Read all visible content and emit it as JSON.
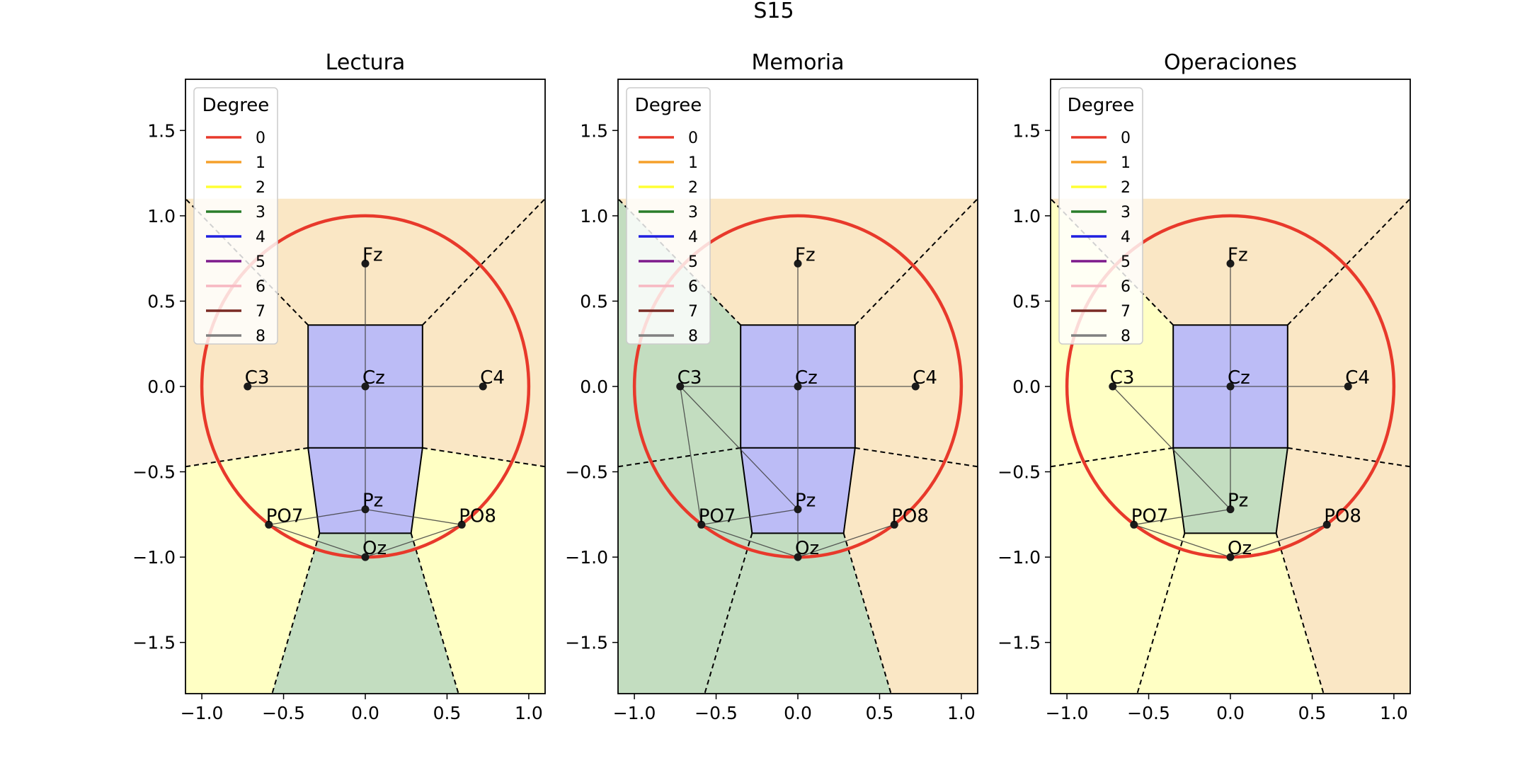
{
  "figure": {
    "title": "S15"
  },
  "chart_data": [
    {
      "type": "network",
      "title": "Lectura",
      "xlim": [
        -1.1,
        1.1
      ],
      "ylim": [
        -1.8,
        1.8
      ],
      "xticks": [
        -1.0,
        -0.5,
        0.0,
        0.5,
        1.0
      ],
      "xtick_labels": [
        "−1.0",
        "−0.5",
        "0.0",
        "0.5",
        "1.0"
      ],
      "yticks": [
        1.5,
        1.0,
        0.5,
        0.0,
        -0.5,
        -1.0,
        -1.5
      ],
      "ytick_labels": [
        "1.5",
        "1.0",
        "0.5",
        "0.0",
        "−0.5",
        "−1.0",
        "−1.5"
      ],
      "grid": false,
      "legend": {
        "title": "Degree",
        "placement": "top-left"
      },
      "head_circle": {
        "cx": 0,
        "cy": 0,
        "r": 1.0,
        "color": "#e8392b"
      },
      "regions": [
        {
          "fill": "#fae7c5",
          "points": [
            [
              -1.1,
              1.1
            ],
            [
              1.1,
              1.1
            ],
            [
              1.1,
              -0.47
            ],
            [
              0.35,
              -0.36
            ],
            [
              -0.35,
              -0.36
            ],
            [
              -1.1,
              -0.47
            ]
          ]
        },
        {
          "fill": "#ffffc4",
          "points": [
            [
              -1.1,
              -0.47
            ],
            [
              -0.35,
              -0.36
            ],
            [
              -0.28,
              -0.86
            ],
            [
              -0.57,
              -1.8
            ],
            [
              -1.1,
              -1.8
            ]
          ]
        },
        {
          "fill": "#ffffc4",
          "points": [
            [
              1.1,
              -0.47
            ],
            [
              0.35,
              -0.36
            ],
            [
              0.28,
              -0.86
            ],
            [
              0.57,
              -1.8
            ],
            [
              1.1,
              -1.8
            ]
          ]
        },
        {
          "fill": "#c3ddc0",
          "points": [
            [
              -0.28,
              -0.86
            ],
            [
              0.28,
              -0.86
            ],
            [
              0.57,
              -1.8
            ],
            [
              -0.57,
              -1.8
            ]
          ]
        },
        {
          "fill": "#bcbcf6",
          "points": [
            [
              -0.35,
              0.36
            ],
            [
              0.35,
              0.36
            ],
            [
              0.35,
              -0.36
            ],
            [
              -0.35,
              -0.36
            ]
          ]
        },
        {
          "fill": "#bcbcf6",
          "points": [
            [
              -0.35,
              -0.36
            ],
            [
              0.35,
              -0.36
            ],
            [
              0.28,
              -0.86
            ],
            [
              -0.28,
              -0.86
            ]
          ]
        }
      ],
      "nodes": [
        {
          "name": "Fz",
          "x": 0.0,
          "y": 0.72
        },
        {
          "name": "C3",
          "x": -0.72,
          "y": 0.0
        },
        {
          "name": "Cz",
          "x": 0.0,
          "y": 0.0
        },
        {
          "name": "C4",
          "x": 0.72,
          "y": 0.0
        },
        {
          "name": "Pz",
          "x": 0.0,
          "y": -0.72
        },
        {
          "name": "PO7",
          "x": -0.59,
          "y": -0.81
        },
        {
          "name": "PO8",
          "x": 0.59,
          "y": -0.81
        },
        {
          "name": "Oz",
          "x": 0.0,
          "y": -1.0
        }
      ],
      "edges": [
        [
          "Fz",
          "Cz"
        ],
        [
          "C3",
          "Cz"
        ],
        [
          "Cz",
          "C4"
        ],
        [
          "Cz",
          "Pz"
        ],
        [
          "Pz",
          "Oz"
        ],
        [
          "Pz",
          "PO7"
        ],
        [
          "Pz",
          "PO8"
        ],
        [
          "PO7",
          "Oz"
        ],
        [
          "PO8",
          "Oz"
        ]
      ]
    },
    {
      "type": "network",
      "title": "Memoria",
      "xlim": [
        -1.1,
        1.1
      ],
      "ylim": [
        -1.8,
        1.8
      ],
      "xticks": [
        -1.0,
        -0.5,
        0.0,
        0.5,
        1.0
      ],
      "xtick_labels": [
        "−1.0",
        "−0.5",
        "0.0",
        "0.5",
        "1.0"
      ],
      "yticks": [
        1.5,
        1.0,
        0.5,
        0.0,
        -0.5,
        -1.0,
        -1.5
      ],
      "ytick_labels": [
        "1.5",
        "1.0",
        "0.5",
        "0.0",
        "−0.5",
        "−1.0",
        "−1.5"
      ],
      "grid": false,
      "legend": {
        "title": "Degree",
        "placement": "top-left"
      },
      "head_circle": {
        "cx": 0,
        "cy": 0,
        "r": 1.0,
        "color": "#e8392b"
      },
      "regions": [
        {
          "fill": "#fae7c5",
          "points": [
            [
              -0.35,
              0.36
            ],
            [
              -1.1,
              1.1
            ],
            [
              1.1,
              1.1
            ],
            [
              1.1,
              -0.47
            ],
            [
              0.35,
              -0.36
            ]
          ]
        },
        {
          "fill": "#c3ddc0",
          "points": [
            [
              -1.1,
              1.1
            ],
            [
              -0.35,
              0.36
            ],
            [
              -0.35,
              -0.36
            ],
            [
              -1.1,
              -0.47
            ]
          ]
        },
        {
          "fill": "#c3ddc0",
          "points": [
            [
              -1.1,
              -0.47
            ],
            [
              -0.35,
              -0.36
            ],
            [
              -0.28,
              -0.86
            ],
            [
              -0.57,
              -1.8
            ],
            [
              -1.1,
              -1.8
            ]
          ]
        },
        {
          "fill": "#fae7c5",
          "points": [
            [
              1.1,
              -0.47
            ],
            [
              0.35,
              -0.36
            ],
            [
              0.28,
              -0.86
            ],
            [
              0.57,
              -1.8
            ],
            [
              1.1,
              -1.8
            ]
          ]
        },
        {
          "fill": "#c3ddc0",
          "points": [
            [
              -0.28,
              -0.86
            ],
            [
              0.28,
              -0.86
            ],
            [
              0.57,
              -1.8
            ],
            [
              -0.57,
              -1.8
            ]
          ]
        },
        {
          "fill": "#bcbcf6",
          "points": [
            [
              -0.35,
              0.36
            ],
            [
              0.35,
              0.36
            ],
            [
              0.35,
              -0.36
            ],
            [
              -0.35,
              -0.36
            ]
          ]
        },
        {
          "fill": "#bcbcf6",
          "points": [
            [
              -0.35,
              -0.36
            ],
            [
              0.35,
              -0.36
            ],
            [
              0.28,
              -0.86
            ],
            [
              -0.28,
              -0.86
            ]
          ]
        }
      ],
      "nodes": [
        {
          "name": "Fz",
          "x": 0.0,
          "y": 0.72
        },
        {
          "name": "C3",
          "x": -0.72,
          "y": 0.0
        },
        {
          "name": "Cz",
          "x": 0.0,
          "y": 0.0
        },
        {
          "name": "C4",
          "x": 0.72,
          "y": 0.0
        },
        {
          "name": "Pz",
          "x": 0.0,
          "y": -0.72
        },
        {
          "name": "PO7",
          "x": -0.59,
          "y": -0.81
        },
        {
          "name": "PO8",
          "x": 0.59,
          "y": -0.81
        },
        {
          "name": "Oz",
          "x": 0.0,
          "y": -1.0
        }
      ],
      "edges": [
        [
          "Fz",
          "Cz"
        ],
        [
          "C3",
          "Cz"
        ],
        [
          "Cz",
          "C4"
        ],
        [
          "Cz",
          "Pz"
        ],
        [
          "C3",
          "Pz"
        ],
        [
          "C3",
          "PO7"
        ],
        [
          "Pz",
          "Oz"
        ],
        [
          "Pz",
          "PO7"
        ],
        [
          "PO7",
          "Oz"
        ],
        [
          "PO8",
          "Oz"
        ]
      ]
    },
    {
      "type": "network",
      "title": "Operaciones",
      "xlim": [
        -1.1,
        1.1
      ],
      "ylim": [
        -1.8,
        1.8
      ],
      "xticks": [
        -1.0,
        -0.5,
        0.0,
        0.5,
        1.0
      ],
      "xtick_labels": [
        "−1.0",
        "−0.5",
        "0.0",
        "0.5",
        "1.0"
      ],
      "yticks": [
        1.5,
        1.0,
        0.5,
        0.0,
        -0.5,
        -1.0,
        -1.5
      ],
      "ytick_labels": [
        "1.5",
        "1.0",
        "0.5",
        "0.0",
        "−0.5",
        "−1.0",
        "−1.5"
      ],
      "grid": false,
      "legend": {
        "title": "Degree",
        "placement": "top-left"
      },
      "head_circle": {
        "cx": 0,
        "cy": 0,
        "r": 1.0,
        "color": "#e8392b"
      },
      "regions": [
        {
          "fill": "#fae7c5",
          "points": [
            [
              -1.1,
              1.1
            ],
            [
              1.1,
              1.1
            ],
            [
              1.1,
              -0.47
            ],
            [
              0.35,
              -0.36
            ],
            [
              0.35,
              0.36
            ],
            [
              -0.35,
              0.36
            ],
            [
              -1.1,
              1.1
            ]
          ]
        },
        {
          "fill": "#ffffc4",
          "points": [
            [
              -1.1,
              1.1
            ],
            [
              -0.35,
              0.36
            ],
            [
              -0.35,
              -0.36
            ],
            [
              -1.1,
              -0.47
            ]
          ]
        },
        {
          "fill": "#ffffc4",
          "points": [
            [
              -1.1,
              -0.47
            ],
            [
              -0.35,
              -0.36
            ],
            [
              -0.28,
              -0.86
            ],
            [
              -0.57,
              -1.8
            ],
            [
              -1.1,
              -1.8
            ]
          ]
        },
        {
          "fill": "#fae7c5",
          "points": [
            [
              1.1,
              -0.47
            ],
            [
              0.35,
              -0.36
            ],
            [
              0.28,
              -0.86
            ],
            [
              0.57,
              -1.8
            ],
            [
              1.1,
              -1.8
            ]
          ]
        },
        {
          "fill": "#ffffc4",
          "points": [
            [
              -0.28,
              -0.86
            ],
            [
              0.28,
              -0.86
            ],
            [
              0.57,
              -1.8
            ],
            [
              -0.57,
              -1.8
            ]
          ]
        },
        {
          "fill": "#bcbcf6",
          "points": [
            [
              -0.35,
              0.36
            ],
            [
              0.35,
              0.36
            ],
            [
              0.35,
              -0.36
            ],
            [
              -0.35,
              -0.36
            ]
          ]
        },
        {
          "fill": "#c3ddc0",
          "points": [
            [
              -0.35,
              -0.36
            ],
            [
              0.35,
              -0.36
            ],
            [
              0.28,
              -0.86
            ],
            [
              -0.28,
              -0.86
            ]
          ]
        }
      ],
      "nodes": [
        {
          "name": "Fz",
          "x": 0.0,
          "y": 0.72
        },
        {
          "name": "C3",
          "x": -0.72,
          "y": 0.0
        },
        {
          "name": "Cz",
          "x": 0.0,
          "y": 0.0
        },
        {
          "name": "C4",
          "x": 0.72,
          "y": 0.0
        },
        {
          "name": "Pz",
          "x": 0.0,
          "y": -0.72
        },
        {
          "name": "PO7",
          "x": -0.59,
          "y": -0.81
        },
        {
          "name": "PO8",
          "x": 0.59,
          "y": -0.81
        },
        {
          "name": "Oz",
          "x": 0.0,
          "y": -1.0
        }
      ],
      "edges": [
        [
          "Fz",
          "Cz"
        ],
        [
          "C3",
          "Cz"
        ],
        [
          "Cz",
          "C4"
        ],
        [
          "Cz",
          "Pz"
        ],
        [
          "C3",
          "Pz"
        ],
        [
          "Pz",
          "PO7"
        ],
        [
          "PO7",
          "Oz"
        ],
        [
          "PO8",
          "Oz"
        ]
      ]
    }
  ],
  "legend_entries": [
    {
      "label": "0",
      "color": "#e8392b"
    },
    {
      "label": "1",
      "color": "#f5a02a"
    },
    {
      "label": "2",
      "color": "#ffff33"
    },
    {
      "label": "3",
      "color": "#2a7d2a"
    },
    {
      "label": "4",
      "color": "#1f1fe0"
    },
    {
      "label": "5",
      "color": "#7d1a8c"
    },
    {
      "label": "6",
      "color": "#f7b8c2"
    },
    {
      "label": "7",
      "color": "#7a2a24"
    },
    {
      "label": "8",
      "color": "#808080"
    }
  ],
  "colors": {
    "boundary": "#000000",
    "edge": "#404040",
    "node": "#1a1a1a"
  }
}
